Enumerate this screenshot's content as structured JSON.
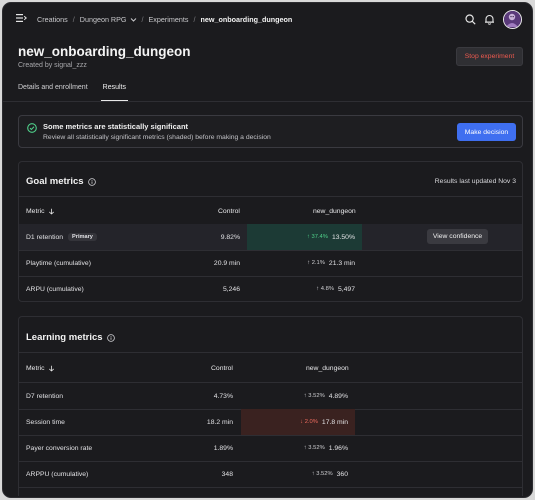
{
  "breadcrumb": {
    "items": [
      "Creations",
      "Dungeon RPG",
      "Experiments"
    ],
    "current": "new_onboarding_dungeon"
  },
  "header": {
    "title": "new_onboarding_dungeon",
    "subtitle": "Created by signal_zzz",
    "stop_label": "Stop experiment"
  },
  "tabs": [
    {
      "label": "Details and enrollment",
      "active": false
    },
    {
      "label": "Results",
      "active": true
    }
  ],
  "banner": {
    "title": "Some metrics are statistically significant",
    "description": "Review all statistically significant metrics (shaded) before making a decision",
    "button_label": "Make decision"
  },
  "goal_metrics": {
    "title": "Goal metrics",
    "updated": "Results last updated Nov 3",
    "columns": [
      "Metric",
      "Control",
      "new_dungeon"
    ],
    "rows": [
      {
        "metric": "D1 retention",
        "badge": "Primary",
        "control": "9.82%",
        "delta": "37.4%",
        "direction": "up",
        "value": "13.50%",
        "significant": "positive",
        "action": "View confidence"
      },
      {
        "metric": "Playtime (cumulative)",
        "control": "20.9 min",
        "delta": "2.1%",
        "direction": "up",
        "value": "21.3 min",
        "significant": "none"
      },
      {
        "metric": "ARPU (cumulative)",
        "control": "5,246",
        "delta": "4.8%",
        "direction": "up",
        "value": "5,497",
        "significant": "none"
      }
    ]
  },
  "learning_metrics": {
    "title": "Learning metrics",
    "columns": [
      "Metric",
      "Control",
      "new_dungeon"
    ],
    "rows": [
      {
        "metric": "D7 retention",
        "control": "4.73%",
        "delta": "3.52%",
        "direction": "up",
        "value": "4.89%",
        "significant": "none"
      },
      {
        "metric": "Session time",
        "control": "18.2 min",
        "delta": "2.0%",
        "direction": "down",
        "value": "17.8 min",
        "significant": "negative"
      },
      {
        "metric": "Payer conversion rate",
        "control": "1.89%",
        "delta": "3.52%",
        "direction": "up",
        "value": "1.96%",
        "significant": "none"
      },
      {
        "metric": "ARPPU (cumulative)",
        "control": "348",
        "delta": "3.52%",
        "direction": "up",
        "value": "360",
        "significant": "none"
      }
    ]
  },
  "colors": {
    "accent": "#3f6ff0",
    "positive_shade": "#1c3a35",
    "negative_shade": "#3a2220",
    "stop_text": "#ee5a4f",
    "positive_text": "#4fd08a"
  },
  "icons": {
    "menu": "menu-icon",
    "search": "search-icon",
    "bell": "bell-icon",
    "check": "check-circle-icon",
    "info": "info-icon",
    "sort": "arrow-down-icon"
  }
}
